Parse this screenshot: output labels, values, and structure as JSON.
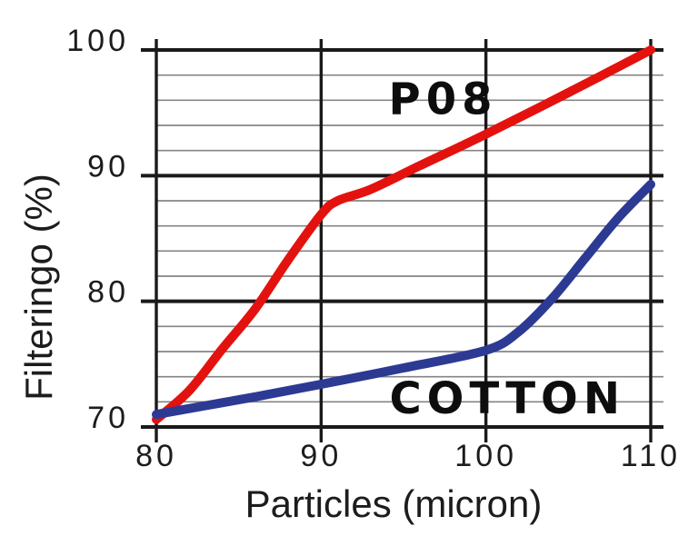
{
  "chart_data": {
    "type": "line",
    "title": "",
    "xlabel": "Particles (micron)",
    "ylabel": "Filteringo (%)",
    "xlim": [
      80,
      110
    ],
    "ylim": [
      70,
      100
    ],
    "x_ticks": [
      80,
      90,
      100,
      110
    ],
    "y_ticks": [
      70,
      80,
      90,
      100
    ],
    "y_minor_step": 2,
    "grid": "on",
    "legend": "inline-labels",
    "background": "#ffffff",
    "axis_color": "#1a1a1a",
    "minor_grid_color": "#858585",
    "series": [
      {
        "name": "P08",
        "color": "#e3120e",
        "line_width": 10,
        "label": {
          "text": "P08",
          "x": 97.4,
          "y": 94.9
        },
        "points": [
          [
            80,
            70.6
          ],
          [
            82,
            72.9
          ],
          [
            84,
            76.2
          ],
          [
            86,
            79.4
          ],
          [
            88,
            83.3
          ],
          [
            90,
            86.9
          ],
          [
            91,
            88.0
          ],
          [
            93,
            88.9
          ],
          [
            96,
            90.8
          ],
          [
            100,
            93.3
          ],
          [
            105,
            96.6
          ],
          [
            110,
            100
          ]
        ]
      },
      {
        "name": "COTTON",
        "color": "#2c3a94",
        "line_width": 10,
        "label": {
          "text": "COTTON",
          "x": 101.3,
          "y": 71.1
        },
        "points": [
          [
            80,
            71.0
          ],
          [
            83,
            71.7
          ],
          [
            86,
            72.4
          ],
          [
            90,
            73.4
          ],
          [
            95,
            74.7
          ],
          [
            100,
            76.1
          ],
          [
            102,
            77.6
          ],
          [
            104,
            80.2
          ],
          [
            106,
            83.4
          ],
          [
            108,
            86.6
          ],
          [
            110,
            89.3
          ]
        ]
      }
    ]
  }
}
